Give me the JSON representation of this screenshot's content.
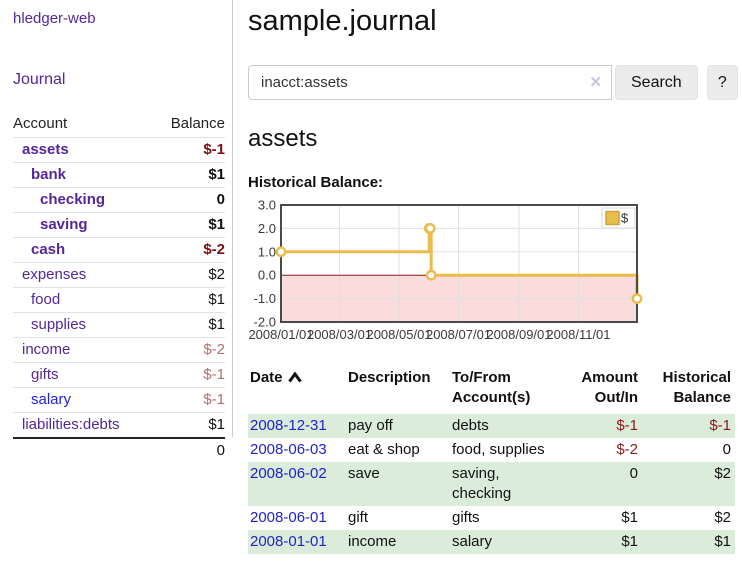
{
  "sidebar": {
    "app_title": "hledger-web",
    "journal_label": "Journal",
    "table": {
      "account_header": "Account",
      "balance_header": "Balance",
      "rows": [
        {
          "account": "assets",
          "balance": "$-1",
          "indent": 0,
          "bold": true,
          "neg": "strong"
        },
        {
          "account": "bank",
          "balance": "$1",
          "indent": 1,
          "bold": true
        },
        {
          "account": "checking",
          "balance": "0",
          "indent": 2,
          "bold": true
        },
        {
          "account": "saving",
          "balance": "$1",
          "indent": 2,
          "bold": true
        },
        {
          "account": "cash",
          "balance": "$-2",
          "indent": 1,
          "bold": true,
          "neg": "strong"
        },
        {
          "account": "expenses",
          "balance": "$2",
          "indent": 0
        },
        {
          "account": "food",
          "balance": "$1",
          "indent": 1
        },
        {
          "account": "supplies",
          "balance": "$1",
          "indent": 1
        },
        {
          "account": "income",
          "balance": "$-2",
          "indent": 0,
          "neg": "soft"
        },
        {
          "account": "gifts",
          "balance": "$-1",
          "indent": 1,
          "neg": "soft"
        },
        {
          "account": "salary",
          "balance": "$-1",
          "indent": 1,
          "neg": "soft",
          "link": "blue"
        },
        {
          "account": "liabilities:debts",
          "balance": "$1",
          "indent": 0
        }
      ],
      "total": "0"
    }
  },
  "main": {
    "title": "sample.journal",
    "search": {
      "value": "inacct:assets",
      "clear_icon": "✕",
      "button_label": "Search",
      "help_label": "?"
    },
    "account_heading": "assets",
    "chart_label": "Historical Balance:",
    "register": {
      "headers": [
        "Date",
        "Description",
        "To/From Account(s)",
        "Amount Out/In",
        "Historical Balance"
      ],
      "sort_icon": "chevron-up",
      "rows": [
        {
          "date": "2008-12-31",
          "description": "pay off",
          "accounts": [
            "debts"
          ],
          "amount": "$-1",
          "amount_neg": true,
          "balance": "$-1",
          "balance_neg": true
        },
        {
          "date": "2008-06-03",
          "description": "eat & shop",
          "accounts": [
            "food, supplies"
          ],
          "amount": "$-2",
          "amount_neg": true,
          "balance": "0",
          "balance_neg": false
        },
        {
          "date": "2008-06-02",
          "description": "save",
          "accounts": [
            "saving,",
            "checking"
          ],
          "amount": "0",
          "amount_neg": false,
          "balance": "$2",
          "balance_neg": false
        },
        {
          "date": "2008-06-01",
          "description": "gift",
          "accounts": [
            "gifts"
          ],
          "amount": "$1",
          "amount_neg": false,
          "balance": "$2",
          "balance_neg": false
        },
        {
          "date": "2008-01-01",
          "description": "income",
          "accounts": [
            "salary"
          ],
          "amount": "$1",
          "amount_neg": false,
          "balance": "$1",
          "balance_neg": false
        }
      ]
    }
  },
  "chart_data": {
    "type": "line",
    "title": "Historical Balance",
    "legend": {
      "label": "$",
      "position": "top-right",
      "swatch_color": "#e9bd4d"
    },
    "x_start_date": "2008-01-01",
    "x_end_date": "2008-12-31",
    "x_ticks": [
      {
        "label": "2008/01/01",
        "date": "2008-01-01"
      },
      {
        "label": "2008/03/01",
        "date": "2008-03-01"
      },
      {
        "label": "2008/05/01",
        "date": "2008-05-01"
      },
      {
        "label": "2008/07/01",
        "date": "2008-07-01"
      },
      {
        "label": "2008/09/01",
        "date": "2008-09-01"
      },
      {
        "label": "2008/11/01",
        "date": "2008-11-01"
      }
    ],
    "y_ticks": [
      3.0,
      2.0,
      1.0,
      0.0,
      -1.0,
      -2.0
    ],
    "ylim": [
      -2.0,
      3.0
    ],
    "grid": true,
    "step": true,
    "series": [
      {
        "name": "$",
        "color": "#e9bd4d",
        "points": [
          {
            "date": "2008-01-01",
            "value": 1
          },
          {
            "date": "2008-06-01",
            "value": 2
          },
          {
            "date": "2008-06-02",
            "value": 2
          },
          {
            "date": "2008-06-03",
            "value": 0
          },
          {
            "date": "2008-12-31",
            "value": -1
          }
        ]
      }
    ],
    "negative_region_color": "#fbdcdc",
    "zero_line_color": "#8c1a1a",
    "border_color": "#4a4a4a",
    "gridline_color": "#e0e0e0"
  }
}
